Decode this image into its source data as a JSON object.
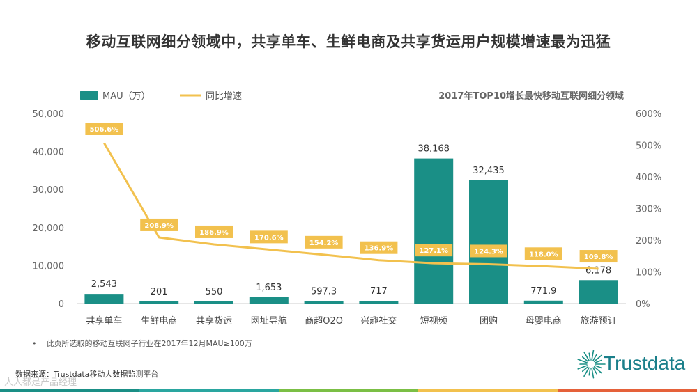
{
  "title": "移动互联网细分领域中，共享单车、生鲜电商及共享货运用户规模增速最为迅猛",
  "legend": {
    "bar_label": "MAU（万）",
    "line_label": "同比增速"
  },
  "subtitle": "2017年TOP10增长最快移动互联网细分领域",
  "note": "此页所选取的移动互联网子行业在2017年12月MAU≥100万",
  "note_bullet": "•",
  "source": "数据来源：Trustdata移动大数据监测平台",
  "logo_text": "Trustdata",
  "watermark": "人人都是产品经理",
  "colors": {
    "bar": "#1a8f86",
    "line": "#f2c14e",
    "footer": [
      "#1a8f86",
      "#2aa6a0",
      "#7bbf45",
      "#f2c14e",
      "#e5613a"
    ]
  },
  "chart_data": {
    "type": "bar",
    "categories": [
      "共享单车",
      "生鲜电商",
      "共享货运",
      "网址导航",
      "商超O2O",
      "兴趣社交",
      "短视频",
      "团购",
      "母婴电商",
      "旅游预订"
    ],
    "series": [
      {
        "name": "MAU（万）",
        "type": "bar",
        "axis": "left",
        "values": [
          2543,
          201,
          550,
          1653,
          597.3,
          717,
          38168,
          32435,
          771.9,
          6178
        ],
        "labels": [
          "2,543",
          "201",
          "550",
          "1,653",
          "597.3",
          "717",
          "38,168",
          "32,435",
          "771.9",
          "6,178"
        ]
      },
      {
        "name": "同比增速",
        "type": "line",
        "axis": "right",
        "values": [
          506.6,
          208.9,
          186.9,
          170.6,
          154.2,
          136.9,
          127.1,
          124.3,
          118.0,
          109.8
        ],
        "labels": [
          "506.6%",
          "208.9%",
          "186.9%",
          "170.6%",
          "154.2%",
          "136.9%",
          "127.1%",
          "124.3%",
          "118.0%",
          "109.8%"
        ]
      }
    ],
    "y_left": {
      "range": [
        0,
        50000
      ],
      "ticks": [
        0,
        10000,
        20000,
        30000,
        40000,
        50000
      ],
      "tick_labels": [
        "0",
        "10,000",
        "20,000",
        "30,000",
        "40,000",
        "50,000"
      ]
    },
    "y_right": {
      "range": [
        0,
        600
      ],
      "ticks": [
        0,
        100,
        200,
        300,
        400,
        500,
        600
      ],
      "tick_labels": [
        "0%",
        "100%",
        "200%",
        "300%",
        "400%",
        "500%",
        "600%"
      ]
    },
    "grid": false,
    "legend_position": "top-left"
  }
}
